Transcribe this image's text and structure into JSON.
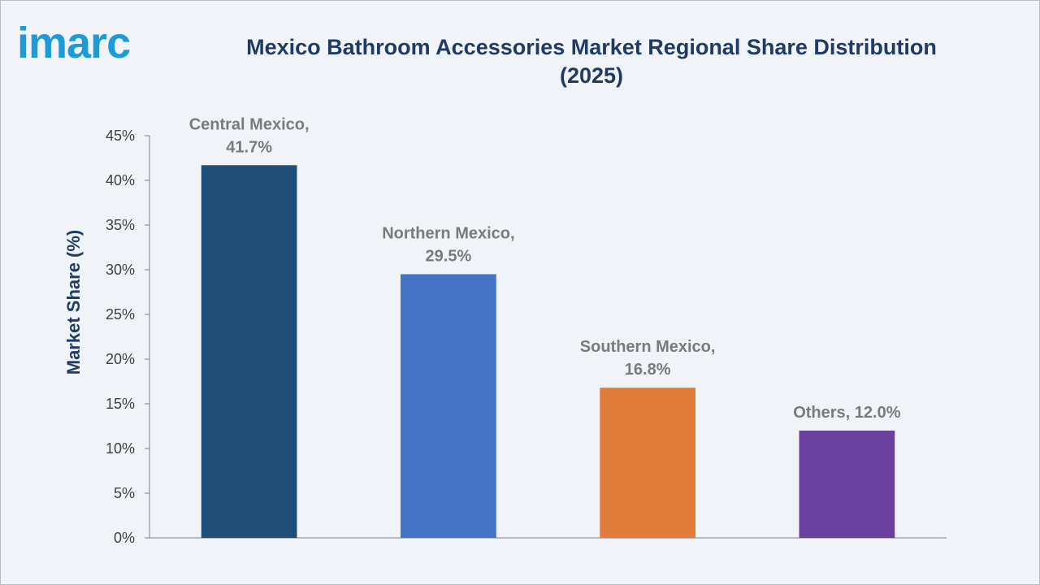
{
  "brand": {
    "logo_text": "imarc",
    "logo_color": "#1e9ad6"
  },
  "chart_data": {
    "type": "bar",
    "title": "Mexico Bathroom Accessories Market Regional Share Distribution (2025)",
    "xlabel": "",
    "ylabel": "Market Share (%)",
    "ylim": [
      0,
      45
    ],
    "yticks": [
      "0%",
      "5%",
      "10%",
      "15%",
      "20%",
      "25%",
      "30%",
      "35%",
      "40%",
      "45%"
    ],
    "grid": false,
    "legend": "none",
    "categories": [
      "Central Mexico",
      "Northern Mexico",
      "Southern Mexico",
      "Others"
    ],
    "values": [
      41.7,
      29.5,
      16.8,
      12.0
    ],
    "data_labels": [
      [
        "Central Mexico,",
        "41.7%"
      ],
      [
        "Northern Mexico,",
        "29.5%"
      ],
      [
        "Southern Mexico,",
        "16.8%"
      ],
      [
        "Others, 12.0%"
      ]
    ],
    "colors": [
      "#1f4e79",
      "#4472c4",
      "#e07b39",
      "#6b3fa0"
    ]
  }
}
